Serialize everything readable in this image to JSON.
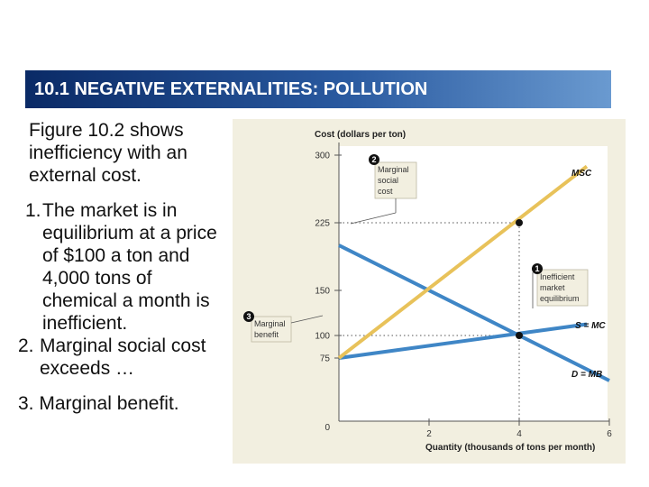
{
  "slide": {
    "title": "10.1 NEGATIVE EXTERNALITIES: POLLUTION",
    "intro": "Figure 10.2 shows inefficiency with an external cost.",
    "points": [
      {
        "num": "1.",
        "text": "The market is in equilibrium at a price of $100 a ton and 4,000 tons of chemical a month is inefficient."
      },
      {
        "num": "2.",
        "text": "Marginal social cost exceeds …"
      },
      {
        "num": "3.",
        "text": "Marginal benefit."
      }
    ]
  },
  "chart_data": {
    "type": "line",
    "ylabel": "Cost (dollars per ton)",
    "xlabel": "Quantity (thousands of tons per month)",
    "xlim": [
      0,
      6
    ],
    "ylim": [
      0,
      300
    ],
    "xticks": [
      2,
      4,
      6
    ],
    "yticks": [
      75,
      100,
      150,
      225,
      300
    ],
    "origin_label": "0",
    "series": [
      {
        "name": "MSC",
        "color": "#e8c25a",
        "x": [
          0,
          5.5
        ],
        "y": [
          75,
          287.5
        ]
      },
      {
        "name": "S = MC",
        "color": "#3f86c6",
        "x": [
          0,
          5.5
        ],
        "y": [
          75,
          112.5
        ]
      },
      {
        "name": "D = MB",
        "color": "#3f86c6",
        "x": [
          0,
          6
        ],
        "y": [
          200,
          50
        ]
      }
    ],
    "points": [
      {
        "x": 4,
        "y": 225
      },
      {
        "x": 4,
        "y": 100
      }
    ],
    "callouts": [
      {
        "badge": "2",
        "label": [
          "Marginal",
          "social",
          "cost"
        ]
      },
      {
        "badge": "1",
        "label": [
          "Inefficient",
          "market",
          "equilibrium"
        ]
      },
      {
        "badge": "3",
        "label": [
          "Marginal",
          "benefit"
        ]
      }
    ],
    "colors": {
      "msc": "#e8c25a",
      "supply_demand": "#3f86c6",
      "plot_bg": "#ffffff",
      "figure_bg": "#f2efe0",
      "title_bar": "#2a5aa0"
    }
  }
}
